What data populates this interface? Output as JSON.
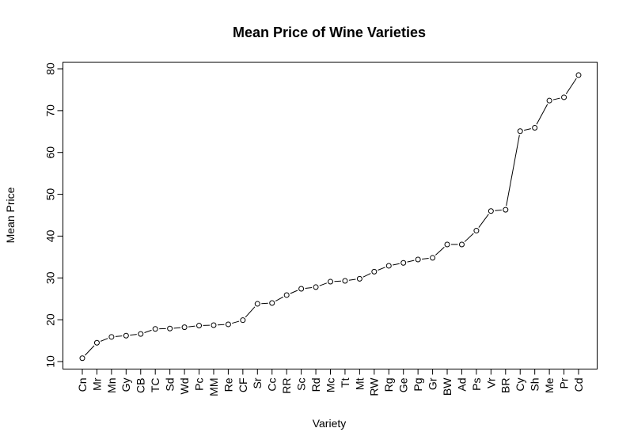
{
  "chart_data": {
    "type": "line",
    "title": "Mean Price of Wine Varieties",
    "xlabel": "Variety",
    "ylabel": "Mean Price",
    "categories": [
      "Cn",
      "Mr",
      "Mn",
      "Gy",
      "CB",
      "TC",
      "Sd",
      "Wd",
      "Pc",
      "MM",
      "Re",
      "CF",
      "Sr",
      "Cc",
      "RR",
      "Sc",
      "Rd",
      "Mc",
      "Tt",
      "Mt",
      "RW",
      "Rg",
      "Ge",
      "Pg",
      "Gr",
      "BW",
      "Ad",
      "Ps",
      "Vr",
      "BR",
      "Cy",
      "Sh",
      "Me",
      "Pr",
      "Cd"
    ],
    "values": [
      10.8,
      14.5,
      15.9,
      16.2,
      16.6,
      17.8,
      17.9,
      18.2,
      18.6,
      18.7,
      18.9,
      19.9,
      23.8,
      24.0,
      25.9,
      27.4,
      27.8,
      29.1,
      29.3,
      29.8,
      31.5,
      32.9,
      33.6,
      34.4,
      34.8,
      38.0,
      38.0,
      41.3,
      46.0,
      46.3,
      65.1,
      65.9,
      72.4,
      73.2,
      78.5
    ],
    "ylim": [
      10,
      80
    ],
    "yticks": [
      10,
      20,
      30,
      40,
      50,
      60,
      70,
      80
    ],
    "grid": false,
    "point_style": "open-circle",
    "line_style": "dashed-overplot"
  }
}
